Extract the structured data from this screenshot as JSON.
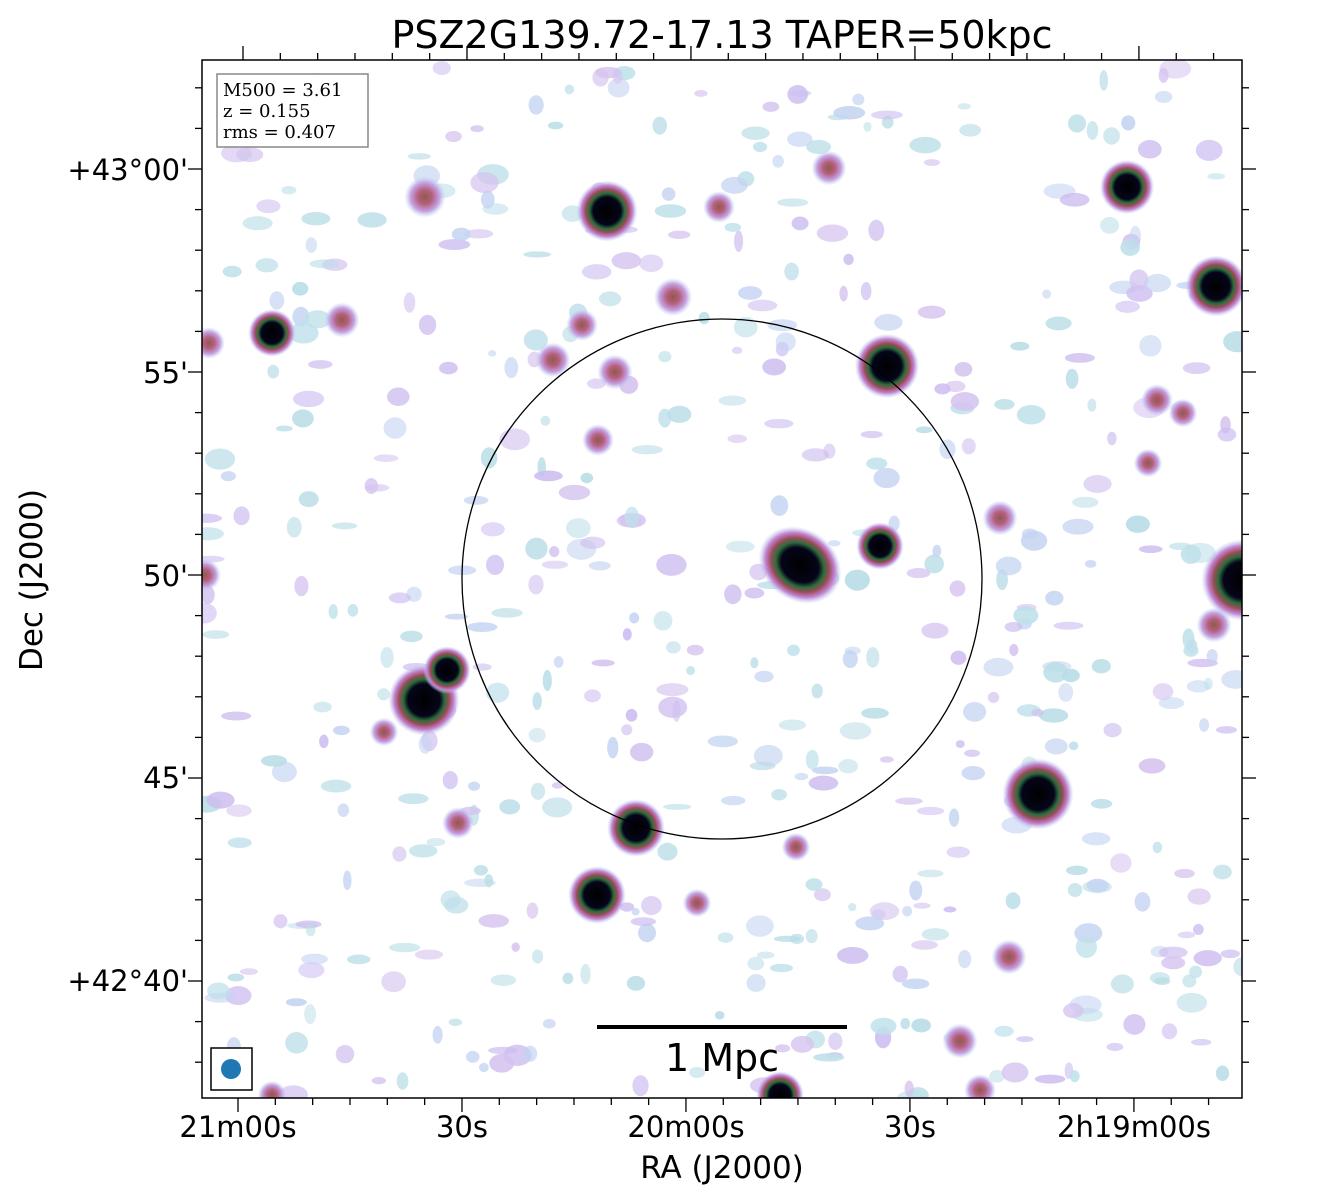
{
  "title": "PSZ2G139.72-17.13 TAPER=50kpc",
  "info_box": [
    "M500 = 3.61",
    "z = 0.155",
    "rms = 0.407"
  ],
  "x_axis": {
    "label": "RA (J2000)",
    "tick_labels": [
      "21m00s",
      "30s",
      "20m00s",
      "30s",
      "2h19m00s"
    ]
  },
  "y_axis": {
    "label": "Dec (J2000)",
    "tick_labels": [
      "+43°00'",
      "55'",
      "50'",
      "45'",
      "+42°40'"
    ]
  },
  "scale_bar": "1 Mpc"
}
